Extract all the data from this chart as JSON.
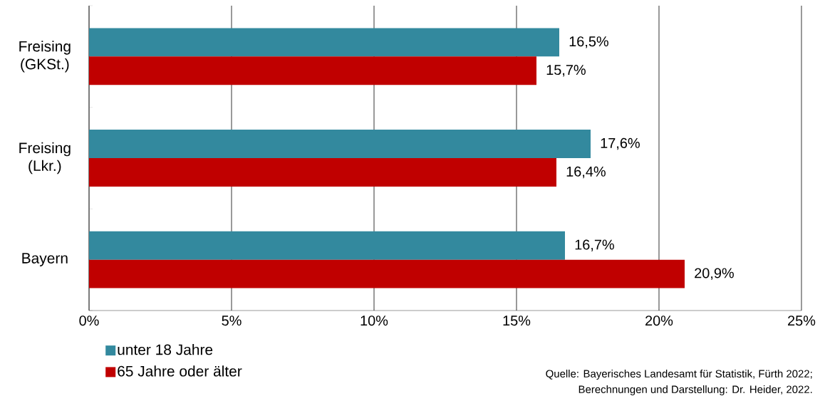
{
  "chart_data": {
    "type": "bar",
    "orientation": "horizontal",
    "categories": [
      "Freising (GKSt.)",
      "Freising (Lkr.)",
      "Bayern"
    ],
    "series": [
      {
        "name": "unter 18 Jahre",
        "color": "#33899e",
        "values": [
          16.5,
          17.6,
          16.7
        ],
        "value_labels": [
          "16,5%",
          "17,6%",
          "16,7%"
        ]
      },
      {
        "name": "65 Jahre oder älter",
        "color": "#c00000",
        "values": [
          15.7,
          16.4,
          20.9
        ],
        "value_labels": [
          "15,7%",
          "16,4%",
          "20,9%"
        ]
      }
    ],
    "xlim": [
      0,
      25
    ],
    "xticks": [
      {
        "value": 0,
        "label": "0%"
      },
      {
        "value": 5,
        "label": "5%"
      },
      {
        "value": 10,
        "label": "10%"
      },
      {
        "value": 15,
        "label": "15%"
      },
      {
        "value": 20,
        "label": "20%"
      },
      {
        "value": 25,
        "label": "25%"
      }
    ],
    "grid": "x",
    "legend": "bottom",
    "annotations": [
      "Quelle: Bayerisches Landesamt für Statistik, Fürth 2022;",
      "Berechnungen und Darstellung: Dr. Heider, 2022."
    ]
  }
}
